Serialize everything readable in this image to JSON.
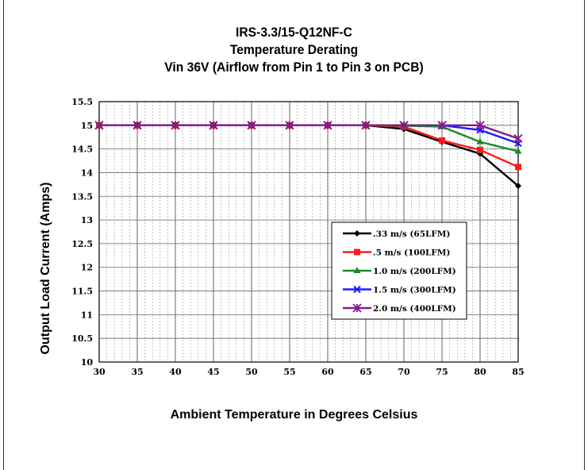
{
  "chart_data": {
    "type": "line",
    "title": [
      "IRS-3.3/15-Q12NF-C",
      "Temperature Derating",
      "Vin 36V (Airflow from Pin 1 to Pin 3 on PCB)"
    ],
    "xlabel": "Ambient Temperature in Degrees Celsius",
    "ylabel": "Output Load Current (Amps)",
    "xlim": [
      30,
      85
    ],
    "ylim": [
      10,
      15.5
    ],
    "x_ticks": [
      "30",
      "35",
      "40",
      "45",
      "50",
      "55",
      "60",
      "65",
      "70",
      "75",
      "80",
      "85"
    ],
    "y_ticks": [
      "10",
      "10.5",
      "11",
      "11.5",
      "12",
      "12.5",
      "13",
      "13.5",
      "14",
      "14.5",
      "15",
      "15.5"
    ],
    "grid": true,
    "legend_position": "inside-right",
    "x": [
      30,
      35,
      40,
      45,
      50,
      55,
      60,
      65,
      70,
      75,
      80,
      85
    ],
    "series": [
      {
        "name": ".33 m/s (65LFM)",
        "color": "#000000",
        "marker": "diamond",
        "values": [
          15,
          15,
          15,
          15,
          15,
          15,
          15,
          15,
          14.92,
          14.65,
          14.4,
          13.72
        ]
      },
      {
        "name": ".5 m/s (100LFM)",
        "color": "#ff1a1a",
        "marker": "square",
        "values": [
          15,
          15,
          15,
          15,
          15,
          15,
          15,
          15,
          14.97,
          14.68,
          14.48,
          14.12
        ]
      },
      {
        "name": "1.0 m/s (200LFM)",
        "color": "#1a8c2a",
        "marker": "triangle",
        "values": [
          15,
          15,
          15,
          15,
          15,
          15,
          15,
          15,
          14.99,
          14.97,
          14.65,
          14.45
        ]
      },
      {
        "name": "1.5 m/s (300LFM)",
        "color": "#1a1aff",
        "marker": "x",
        "values": [
          15,
          15,
          15,
          15,
          15,
          15,
          15,
          15,
          15,
          15,
          14.9,
          14.62
        ]
      },
      {
        "name": "2.0 m/s (400LFM)",
        "color": "#8a1a8a",
        "marker": "star",
        "values": [
          15,
          15,
          15,
          15,
          15,
          15,
          15,
          15,
          15,
          15,
          15,
          14.72
        ]
      }
    ]
  }
}
